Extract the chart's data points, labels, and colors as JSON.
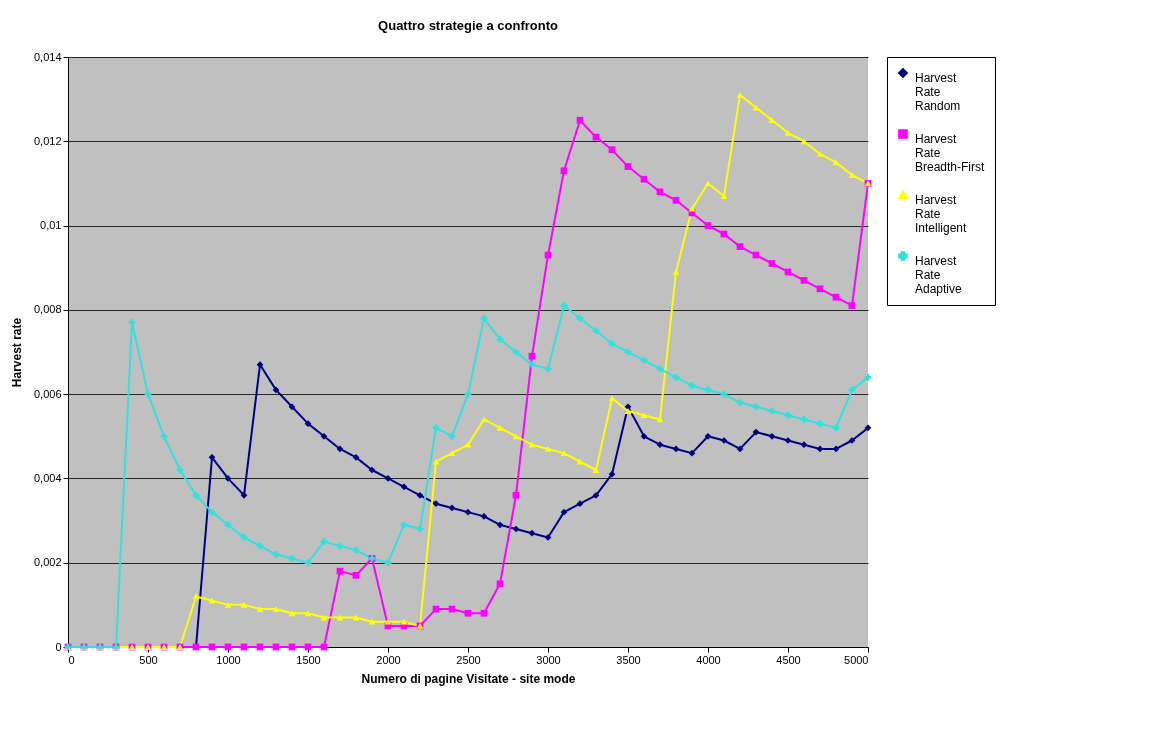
{
  "chart_data": {
    "type": "line",
    "title": "Quattro strategie a confronto",
    "xlabel": "Numero di pagine Visitate - site mode",
    "ylabel": "Harvest rate",
    "x": [
      0,
      100,
      200,
      300,
      400,
      500,
      600,
      700,
      800,
      900,
      1000,
      1100,
      1200,
      1300,
      1400,
      1500,
      1600,
      1700,
      1800,
      1900,
      2000,
      2100,
      2200,
      2300,
      2400,
      2500,
      2600,
      2700,
      2800,
      2900,
      3000,
      3100,
      3200,
      3300,
      3400,
      3500,
      3600,
      3700,
      3800,
      3900,
      4000,
      4100,
      4200,
      4300,
      4400,
      4500,
      4600,
      4700,
      4800,
      4900,
      5000
    ],
    "xlim": [
      0,
      5000
    ],
    "xticks": [
      0,
      500,
      1000,
      1500,
      2000,
      2500,
      3000,
      3500,
      4000,
      4500,
      5000
    ],
    "ylim": [
      0,
      0.014
    ],
    "yticks": [
      {
        "value": 0,
        "label": "0"
      },
      {
        "value": 0.002,
        "label": "0,002"
      },
      {
        "value": 0.004,
        "label": "0,004"
      },
      {
        "value": 0.006,
        "label": "0,006"
      },
      {
        "value": 0.008,
        "label": "0,008"
      },
      {
        "value": 0.01,
        "label": "0,01"
      },
      {
        "value": 0.012,
        "label": "0,012"
      },
      {
        "value": 0.014,
        "label": "0,014"
      }
    ],
    "grid": "y",
    "legend": "right",
    "series": [
      {
        "name": "Harvest Rate Random",
        "color": "#000080",
        "marker": "diamond",
        "values": [
          null,
          null,
          null,
          null,
          null,
          null,
          null,
          0,
          0,
          0.0045,
          0.004,
          0.0036,
          0.0067,
          0.0061,
          0.0057,
          0.0053,
          0.005,
          0.0047,
          0.0045,
          0.0042,
          0.004,
          0.0038,
          0.0036,
          0.0034,
          0.0033,
          0.0032,
          0.0031,
          0.0029,
          0.0028,
          0.0027,
          0.0026,
          0.0032,
          0.0034,
          0.0036,
          0.0041,
          0.0057,
          0.005,
          0.0048,
          0.0047,
          0.0046,
          0.005,
          0.0049,
          0.0047,
          0.0051,
          0.005,
          0.0049,
          0.0048,
          0.0047,
          0.0047,
          0.0049,
          0.0052
        ]
      },
      {
        "name": "Harvest Rate Breadth-First",
        "color": "#ff00ff",
        "marker": "square",
        "values": [
          0,
          0,
          0,
          0,
          0,
          0,
          0,
          0,
          0,
          0,
          0,
          0,
          0,
          0,
          0,
          0,
          0,
          0.0018,
          0.0017,
          0.0021,
          0.0005,
          0.0005,
          0.0005,
          0.0009,
          0.0009,
          0.0008,
          0.0008,
          0.0015,
          0.0036,
          0.0069,
          0.0093,
          0.0113,
          0.0125,
          0.0121,
          0.0118,
          0.0114,
          0.0111,
          0.0108,
          0.0106,
          0.0103,
          0.01,
          0.0098,
          0.0095,
          0.0093,
          0.0091,
          0.0089,
          0.0087,
          0.0085,
          0.0083,
          0.0081,
          0.011
        ]
      },
      {
        "name": "Harvest Rate Intelligent",
        "color": "#ffff00",
        "marker": "triangle",
        "values": [
          0,
          0,
          0,
          0,
          0,
          0,
          0,
          0,
          0.0012,
          0.0011,
          0.001,
          0.001,
          0.0009,
          0.0009,
          0.0008,
          0.0008,
          0.0007,
          0.0007,
          0.0007,
          0.0006,
          0.0006,
          0.0006,
          0.0005,
          0.0044,
          0.0046,
          0.0048,
          0.0054,
          0.0052,
          0.005,
          0.0048,
          0.0047,
          0.0046,
          0.0044,
          0.0042,
          0.0059,
          0.0056,
          0.0055,
          0.0054,
          0.0089,
          0.0104,
          0.011,
          0.0107,
          0.0131,
          0.0128,
          0.0125,
          0.0122,
          0.012,
          0.0117,
          0.0115,
          0.0112,
          0.011
        ]
      },
      {
        "name": "Harvest Rate Adaptive",
        "color": "#33e0e0",
        "marker": "cross",
        "values": [
          0,
          0,
          0,
          0,
          0.0077,
          0.006,
          0.005,
          0.0042,
          0.0036,
          0.0032,
          0.0029,
          0.0026,
          0.0024,
          0.0022,
          0.0021,
          0.002,
          0.0025,
          0.0024,
          0.0023,
          0.0021,
          0.002,
          0.0029,
          0.0028,
          0.0052,
          0.005,
          0.006,
          0.0078,
          0.0073,
          0.007,
          0.0067,
          0.0066,
          0.0081,
          0.0078,
          0.0075,
          0.0072,
          0.007,
          0.0068,
          0.0066,
          0.0064,
          0.0062,
          0.0061,
          0.006,
          0.0058,
          0.0057,
          0.0056,
          0.0055,
          0.0054,
          0.0053,
          0.0052,
          0.0061,
          0.0064
        ]
      }
    ]
  }
}
